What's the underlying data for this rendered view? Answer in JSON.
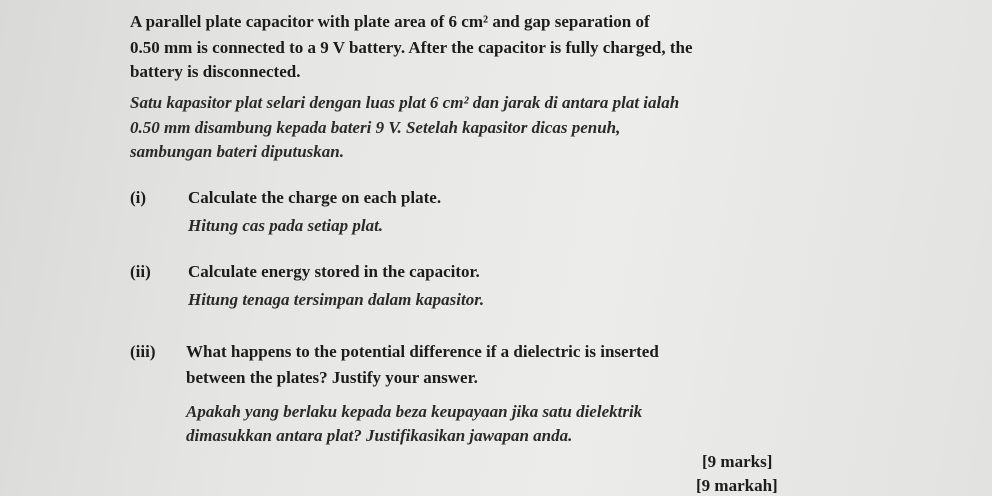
{
  "intro_en": [
    "A parallel plate capacitor with plate area of 6 cm² and gap separation of",
    "0.50 mm is connected to a 9 V battery. After the capacitor is fully charged, the",
    "battery is disconnected."
  ],
  "intro_ms": [
    "Satu kapasitor plat selari dengan luas plat 6 cm² dan jarak di antara plat ialah",
    "0.50 mm disambung kepada bateri 9 V. Setelah kapasitor dicas penuh,",
    "sambungan bateri diputuskan."
  ],
  "parts": [
    {
      "label": "(i)",
      "en": [
        "Calculate the charge on each plate."
      ],
      "ms": [
        "Hitung cas pada setiap plat."
      ]
    },
    {
      "label": "(ii)",
      "en": [
        "Calculate energy stored in the capacitor."
      ],
      "ms": [
        "Hitung tenaga tersimpan dalam kapasitor."
      ]
    },
    {
      "label": "(iii)",
      "en": [
        "What happens to the potential difference if a dielectric is inserted",
        "between the plates? Justify your answer."
      ],
      "ms": [
        "Apakah yang berlaku kepada beza keupayaan jika satu dielektrik",
        "dimasukkan antara plat? Justifikasikan jawapan anda."
      ]
    }
  ],
  "marks": [
    "[9 marks]",
    "[9 markah]"
  ]
}
